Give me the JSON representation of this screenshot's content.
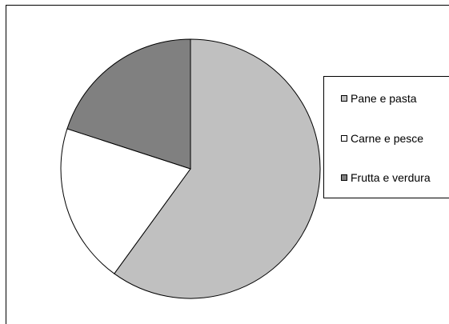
{
  "chart_data": {
    "type": "pie",
    "title": "",
    "legend_position": "right",
    "slices": [
      {
        "label": "Pane e pasta",
        "value": 60,
        "color": "#c0c0c0"
      },
      {
        "label": "Carne e pesce",
        "value": 20,
        "color": "#ffffff"
      },
      {
        "label": "Frutta e verdura",
        "value": 20,
        "color": "#808080"
      }
    ]
  }
}
